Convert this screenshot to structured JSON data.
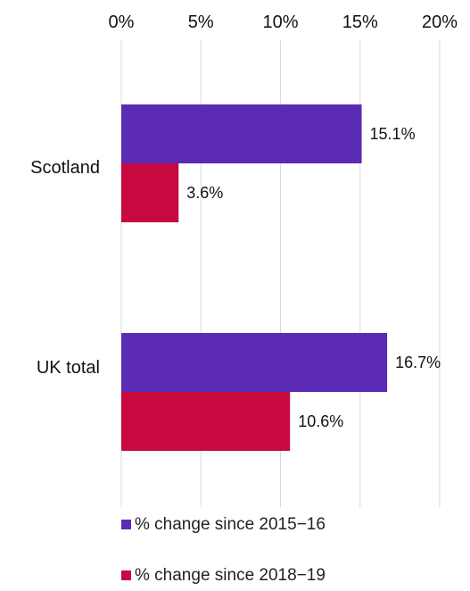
{
  "chart_data": {
    "type": "bar",
    "orientation": "horizontal",
    "categories": [
      "Scotland",
      "UK total"
    ],
    "series": [
      {
        "name": "% change since 2015−16",
        "values": [
          15.1,
          16.7
        ],
        "color": "#5b2bb5",
        "labels": [
          "15.1%",
          "16.7%"
        ]
      },
      {
        "name": "% change since 2018−19",
        "values": [
          3.6,
          10.6
        ],
        "color": "#c8093f",
        "labels": [
          "3.6%",
          "10.6%"
        ]
      }
    ],
    "xlim": [
      0,
      20
    ],
    "xticks": [
      0,
      5,
      10,
      15,
      20
    ],
    "xtick_labels": [
      "0%",
      "5%",
      "10%",
      "15%",
      "20%"
    ],
    "x_axis_position": "top",
    "grid": true,
    "legend_position": "bottom"
  }
}
